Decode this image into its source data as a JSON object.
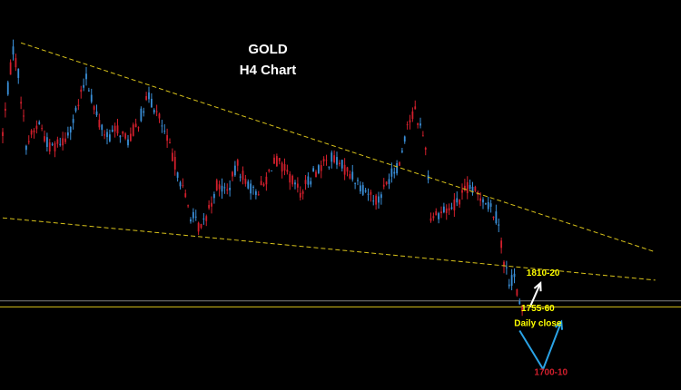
{
  "chart_data": {
    "type": "candlestick",
    "title": "GOLD",
    "subtitle": "H4 Chart",
    "ylim": [
      1695,
      1950
    ],
    "n_candles": 200,
    "colors": {
      "up": "#3a8fd8",
      "down": "#d21f2c",
      "trendline": "#d8c21a",
      "level_line": "#d8c21a",
      "level_line_grey": "#7f7f7f",
      "arrow_white": "#ffffff",
      "arrow_blue": "#2aa3e6",
      "label_yellow": "#ffff00",
      "label_red": "#d21f2c"
    },
    "close_path": [
      [
        0,
        1865
      ],
      [
        2,
        1895
      ],
      [
        4,
        1922
      ],
      [
        6,
        1905
      ],
      [
        9,
        1858
      ],
      [
        14,
        1872
      ],
      [
        18,
        1855
      ],
      [
        24,
        1862
      ],
      [
        28,
        1878
      ],
      [
        32,
        1903
      ],
      [
        36,
        1876
      ],
      [
        40,
        1862
      ],
      [
        44,
        1868
      ],
      [
        48,
        1860
      ],
      [
        52,
        1873
      ],
      [
        56,
        1890
      ],
      [
        60,
        1875
      ],
      [
        66,
        1845
      ],
      [
        72,
        1810
      ],
      [
        76,
        1800
      ],
      [
        82,
        1830
      ],
      [
        86,
        1826
      ],
      [
        90,
        1843
      ],
      [
        96,
        1825
      ],
      [
        100,
        1830
      ],
      [
        104,
        1848
      ],
      [
        108,
        1840
      ],
      [
        114,
        1825
      ],
      [
        120,
        1840
      ],
      [
        126,
        1848
      ],
      [
        132,
        1840
      ],
      [
        138,
        1828
      ],
      [
        144,
        1820
      ],
      [
        148,
        1835
      ],
      [
        152,
        1845
      ],
      [
        155,
        1872
      ],
      [
        158,
        1880
      ],
      [
        162,
        1858
      ],
      [
        164,
        1810
      ],
      [
        168,
        1812
      ],
      [
        172,
        1815
      ],
      [
        178,
        1828
      ],
      [
        184,
        1822
      ],
      [
        188,
        1812
      ],
      [
        190,
        1805
      ],
      [
        192,
        1778
      ],
      [
        194,
        1765
      ],
      [
        196,
        1768
      ],
      [
        198,
        1748
      ],
      [
        199,
        1745
      ]
    ],
    "trendlines": [
      {
        "from": [
          7,
          1926
        ],
        "to": [
          250,
          1785
        ]
      },
      {
        "from": [
          0,
          1808
        ],
        "to": [
          250,
          1766
        ]
      }
    ],
    "horizontal_levels": [
      {
        "price": 1752,
        "color": "level_line_grey"
      },
      {
        "price": 1748,
        "color": "level_line"
      }
    ],
    "annotations": [
      {
        "text": "1810-20",
        "x": 207,
        "price": 1769,
        "color": "label_yellow"
      },
      {
        "text": "1755-60",
        "x": 205,
        "price": 1745,
        "color": "label_yellow"
      },
      {
        "text": "Daily close",
        "x": 205,
        "price": 1735,
        "color": "label_yellow"
      },
      {
        "text": "1700-10",
        "x": 210,
        "price": 1702,
        "color": "label_red"
      }
    ],
    "arrows": [
      {
        "name": "upside-arrow",
        "color": "arrow_white",
        "points": [
          [
            202,
            1748
          ],
          [
            206,
            1764
          ]
        ]
      },
      {
        "name": "dip-and-rebound-arrow",
        "color": "arrow_blue",
        "points": [
          [
            198,
            1732
          ],
          [
            207,
            1706
          ],
          [
            214,
            1738
          ]
        ]
      }
    ]
  }
}
